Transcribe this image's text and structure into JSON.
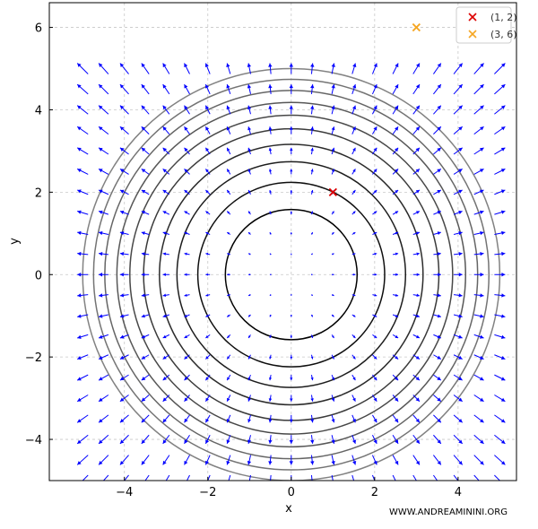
{
  "chart_data": {
    "type": "scatter",
    "title": "",
    "xlabel": "x",
    "ylabel": "y",
    "xlim": [
      -5.8,
      5.4
    ],
    "ylim": [
      -5.0,
      6.6
    ],
    "x_ticks": [
      -4,
      -2,
      0,
      2,
      4
    ],
    "y_ticks": [
      -4,
      -2,
      0,
      2,
      4,
      6
    ],
    "x_tick_labels": [
      "−4",
      "−2",
      "0",
      "2",
      "4"
    ],
    "y_tick_labels": [
      "−4",
      "−2",
      "0",
      "2",
      "4",
      "6"
    ],
    "grid": true,
    "legend_position": "top-right",
    "points": [
      {
        "label": "(1, 2)",
        "x": 1,
        "y": 2,
        "color": "#dd0000",
        "marker": "x"
      },
      {
        "label": "(3, 6)",
        "x": 3,
        "y": 6,
        "color": "#f5a623",
        "marker": "x"
      }
    ],
    "contour_levels_radius": [
      1.58,
      2.24,
      2.74,
      3.16,
      3.54,
      3.87,
      4.18,
      4.47,
      4.74,
      5.0
    ],
    "vector_field": {
      "field": "gradient of x^2 + y^2",
      "grid_min": -5,
      "grid_max": 5,
      "grid_count": 21,
      "color": "#0000ff"
    },
    "watermark": "WWW.ANDREAMININI.ORG"
  }
}
